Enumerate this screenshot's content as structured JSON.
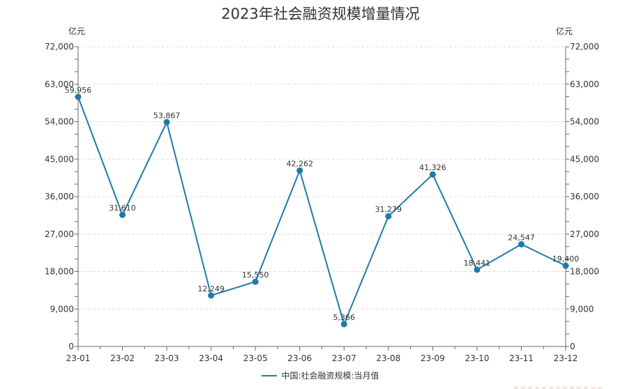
{
  "chart_data": {
    "type": "line",
    "title": "2023年社会融资规模增量情况",
    "categories": [
      "23-01",
      "23-02",
      "23-03",
      "23-04",
      "23-05",
      "23-06",
      "23-07",
      "23-08",
      "23-09",
      "23-10",
      "23-11",
      "23-12"
    ],
    "series": [
      {
        "name": "中国:社会融资规模:当月值",
        "values": [
          59956,
          31610,
          53867,
          12249,
          15550,
          42262,
          5366,
          31279,
          41326,
          18441,
          24547,
          19400
        ],
        "labels": [
          "59,956",
          "31,610",
          "53,867",
          "12,249",
          "15,550",
          "42,262",
          "5,366",
          "31,279",
          "41,326",
          "18,441",
          "24,547",
          "19,400"
        ],
        "color": "#1f7aa8"
      }
    ],
    "xlabel": "",
    "ylabel_left": "亿元",
    "ylabel_right": "亿元",
    "ylim": [
      0,
      72000
    ],
    "yticks": [
      0,
      9000,
      18000,
      27000,
      36000,
      45000,
      54000,
      63000,
      72000
    ],
    "ytick_labels": [
      "0",
      "9,000",
      "18,000",
      "27,000",
      "36,000",
      "45,000",
      "54,000",
      "63,000",
      "72,000"
    ],
    "grid": {
      "horizontal": true,
      "style": "dashed",
      "color": "#dddddd"
    },
    "legend_position": "bottom"
  },
  "title": "2023年社会融资规模增量情况",
  "legend": {
    "label": "中国:社会融资规模:当月值"
  },
  "axes": {
    "left_unit": "亿元",
    "right_unit": "亿元"
  }
}
